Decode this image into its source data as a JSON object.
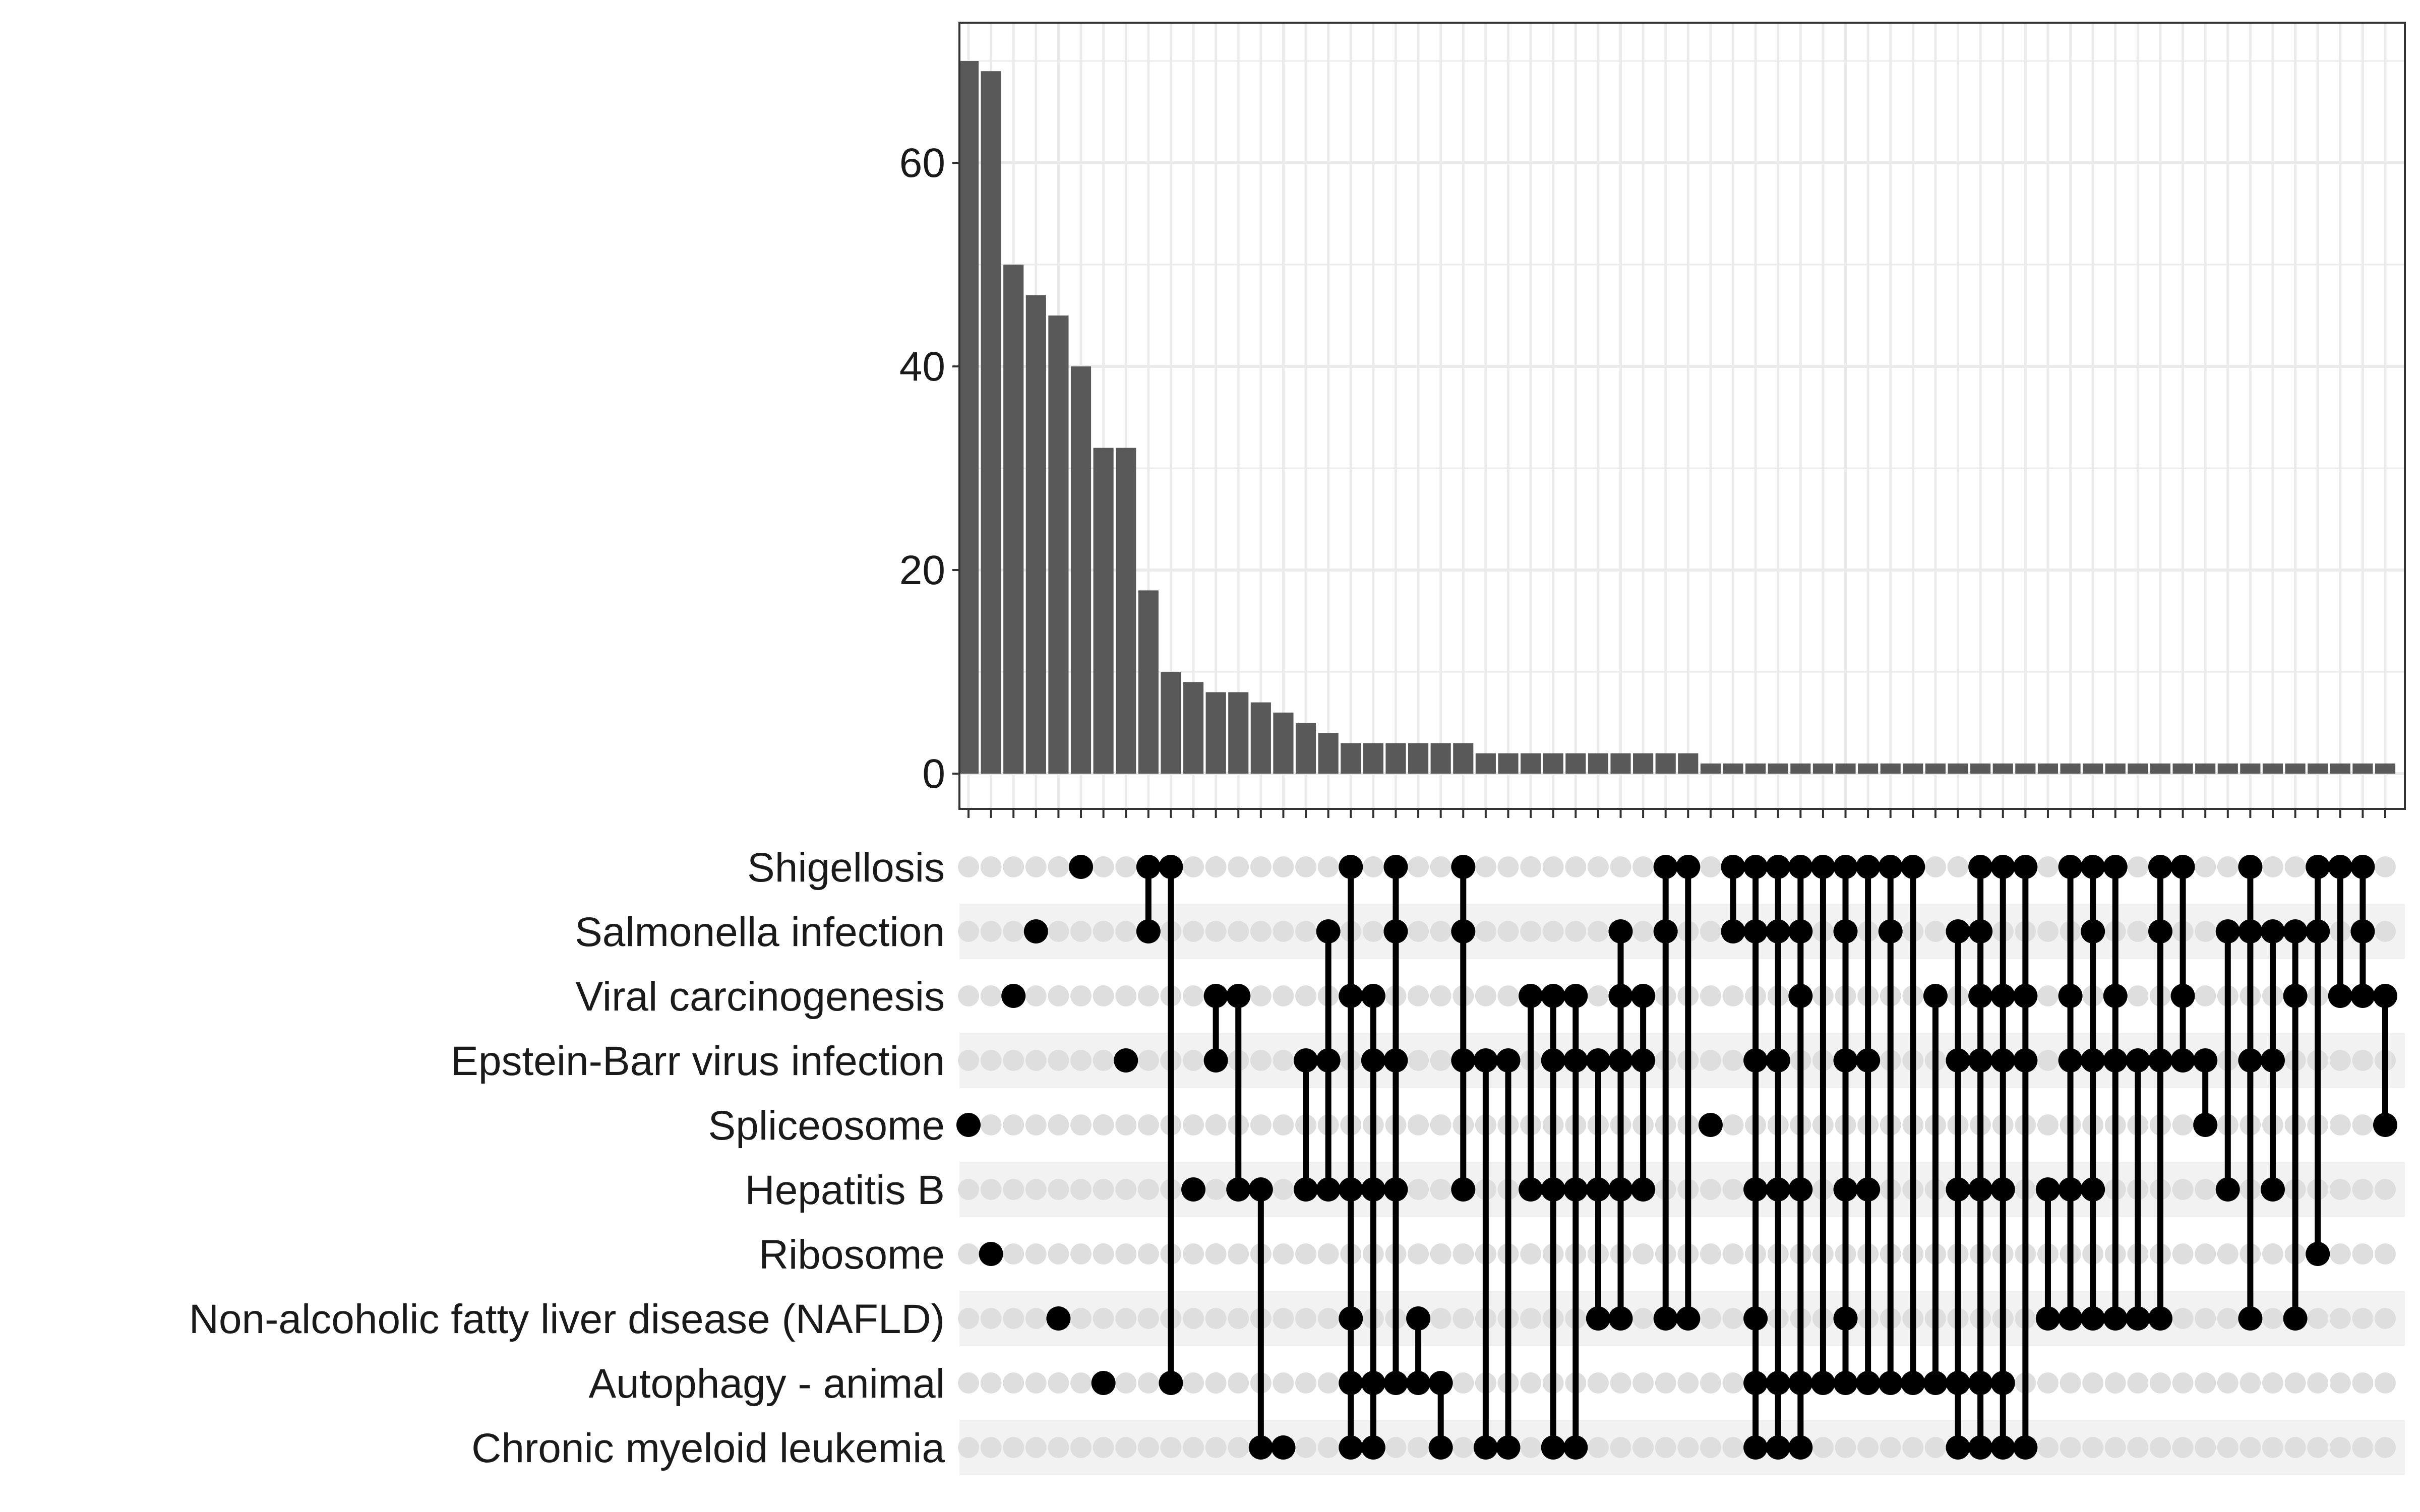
{
  "chart_data": {
    "type": "upset",
    "title": "",
    "xlabel": "",
    "ylabel": "",
    "ylim": [
      0,
      70
    ],
    "yticks": [
      0,
      20,
      40,
      60
    ],
    "grid": true,
    "legend": "none",
    "colors": {
      "bar": "#595959",
      "dot": "#000000",
      "empty_dot": "#dedede",
      "stripe": "#f2f2f2",
      "grid": "#ebebeb"
    },
    "sets": [
      "Shigellosis",
      "Salmonella infection",
      "Viral carcinogenesis",
      "Epstein-Barr virus infection",
      "Spliceosome",
      "Hepatitis B",
      "Ribosome",
      "Non-alcoholic fatty liver disease (NAFLD)",
      "Autophagy - animal",
      "Chronic myeloid leukemia"
    ],
    "intersections": [
      {
        "sets": [
          4
        ],
        "value": 70
      },
      {
        "sets": [
          6
        ],
        "value": 69
      },
      {
        "sets": [
          2
        ],
        "value": 50
      },
      {
        "sets": [
          1
        ],
        "value": 47
      },
      {
        "sets": [
          7
        ],
        "value": 45
      },
      {
        "sets": [
          0
        ],
        "value": 40
      },
      {
        "sets": [
          8
        ],
        "value": 32
      },
      {
        "sets": [
          3
        ],
        "value": 32
      },
      {
        "sets": [
          0,
          1
        ],
        "value": 18
      },
      {
        "sets": [
          0,
          8
        ],
        "value": 10
      },
      {
        "sets": [
          5
        ],
        "value": 9
      },
      {
        "sets": [
          2,
          3
        ],
        "value": 8
      },
      {
        "sets": [
          2,
          5
        ],
        "value": 8
      },
      {
        "sets": [
          5,
          9
        ],
        "value": 7
      },
      {
        "sets": [
          9
        ],
        "value": 6
      },
      {
        "sets": [
          3,
          5
        ],
        "value": 5
      },
      {
        "sets": [
          1,
          3,
          5
        ],
        "value": 4
      },
      {
        "sets": [
          0,
          2,
          5,
          7,
          8,
          9
        ],
        "value": 3
      },
      {
        "sets": [
          2,
          3,
          5,
          8,
          9
        ],
        "value": 3
      },
      {
        "sets": [
          0,
          1,
          3,
          5,
          8
        ],
        "value": 3
      },
      {
        "sets": [
          7,
          8
        ],
        "value": 3
      },
      {
        "sets": [
          8,
          9
        ],
        "value": 3
      },
      {
        "sets": [
          0,
          1,
          3,
          5
        ],
        "value": 3
      },
      {
        "sets": [
          3,
          9
        ],
        "value": 2
      },
      {
        "sets": [
          3,
          9
        ],
        "value": 2
      },
      {
        "sets": [
          2,
          5
        ],
        "value": 2
      },
      {
        "sets": [
          2,
          3,
          5,
          9
        ],
        "value": 2
      },
      {
        "sets": [
          2,
          3,
          5,
          9
        ],
        "value": 2
      },
      {
        "sets": [
          3,
          5,
          7
        ],
        "value": 2
      },
      {
        "sets": [
          1,
          2,
          3,
          5,
          7
        ],
        "value": 2
      },
      {
        "sets": [
          2,
          3,
          5
        ],
        "value": 2
      },
      {
        "sets": [
          0,
          1,
          7
        ],
        "value": 2
      },
      {
        "sets": [
          0,
          7
        ],
        "value": 2
      },
      {
        "sets": [
          4
        ],
        "value": 1
      },
      {
        "sets": [
          0,
          1
        ],
        "value": 1
      },
      {
        "sets": [
          0,
          1,
          3,
          5,
          7,
          8,
          9
        ],
        "value": 1
      },
      {
        "sets": [
          0,
          1,
          3,
          5,
          8,
          9
        ],
        "value": 1
      },
      {
        "sets": [
          0,
          1,
          2,
          5,
          8,
          9
        ],
        "value": 1
      },
      {
        "sets": [
          0,
          8
        ],
        "value": 1
      },
      {
        "sets": [
          0,
          1,
          3,
          5,
          7,
          8
        ],
        "value": 1
      },
      {
        "sets": [
          0,
          3,
          5,
          8
        ],
        "value": 1
      },
      {
        "sets": [
          0,
          1,
          8
        ],
        "value": 1
      },
      {
        "sets": [
          0,
          8
        ],
        "value": 1
      },
      {
        "sets": [
          2,
          8
        ],
        "value": 1
      },
      {
        "sets": [
          1,
          3,
          5,
          8,
          9
        ],
        "value": 1
      },
      {
        "sets": [
          0,
          1,
          2,
          3,
          5,
          8,
          9
        ],
        "value": 1
      },
      {
        "sets": [
          0,
          2,
          3,
          5,
          8,
          9
        ],
        "value": 1
      },
      {
        "sets": [
          0,
          2,
          3,
          9
        ],
        "value": 1
      },
      {
        "sets": [
          5,
          7
        ],
        "value": 1
      },
      {
        "sets": [
          0,
          2,
          3,
          5,
          7
        ],
        "value": 1
      },
      {
        "sets": [
          0,
          1,
          3,
          5,
          7
        ],
        "value": 1
      },
      {
        "sets": [
          0,
          2,
          3,
          7
        ],
        "value": 1
      },
      {
        "sets": [
          3,
          7
        ],
        "value": 1
      },
      {
        "sets": [
          0,
          1,
          3,
          7
        ],
        "value": 1
      },
      {
        "sets": [
          0,
          2,
          3
        ],
        "value": 1
      },
      {
        "sets": [
          3,
          4
        ],
        "value": 1
      },
      {
        "sets": [
          1,
          5
        ],
        "value": 1
      },
      {
        "sets": [
          0,
          1,
          3,
          7
        ],
        "value": 1
      },
      {
        "sets": [
          1,
          3,
          5
        ],
        "value": 1
      },
      {
        "sets": [
          1,
          2,
          7
        ],
        "value": 1
      },
      {
        "sets": [
          0,
          1,
          6
        ],
        "value": 1
      },
      {
        "sets": [
          0,
          2
        ],
        "value": 1
      },
      {
        "sets": [
          0,
          1,
          2
        ],
        "value": 1
      },
      {
        "sets": [
          2,
          4
        ],
        "value": 1
      }
    ]
  }
}
